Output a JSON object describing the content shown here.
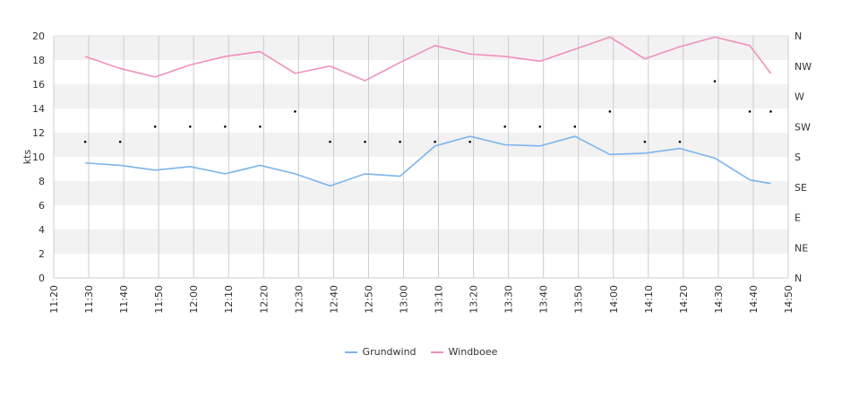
{
  "chart_data": {
    "type": "line",
    "ylabel": "kts",
    "ylim": [
      0,
      20
    ],
    "y_ticks": [
      "0",
      "2",
      "4",
      "6",
      "8",
      "10",
      "12",
      "14",
      "16",
      "18",
      "20"
    ],
    "right_axis_labels": [
      "N",
      "NE",
      "E",
      "SE",
      "S",
      "SW",
      "W",
      "NW",
      "N"
    ],
    "x_ticks": [
      "11:20",
      "11:30",
      "11:40",
      "11:50",
      "12:00",
      "12:10",
      "12:20",
      "12:30",
      "12:40",
      "12:50",
      "13:00",
      "13:10",
      "13:20",
      "13:30",
      "13:40",
      "13:50",
      "14:00",
      "14:10",
      "14:20",
      "14:30",
      "14:40",
      "14:50"
    ],
    "x": [
      "11:29",
      "11:39",
      "11:49",
      "11:59",
      "12:09",
      "12:19",
      "12:29",
      "12:39",
      "12:49",
      "12:59",
      "13:09",
      "13:19",
      "13:29",
      "13:39",
      "13:49",
      "13:59",
      "14:09",
      "14:19",
      "14:29",
      "14:39",
      "14:45"
    ],
    "series": [
      {
        "name": "Grundwind",
        "color": "#7cb5ec",
        "values": [
          9.5,
          9.3,
          8.9,
          9.2,
          8.6,
          9.3,
          8.6,
          7.6,
          8.6,
          8.4,
          10.9,
          11.7,
          11.0,
          10.9,
          11.7,
          10.2,
          10.3,
          10.7,
          9.9,
          8.1,
          7.8
        ]
      },
      {
        "name": "Windboee",
        "color": "#f18fbd",
        "values": [
          18.3,
          17.3,
          16.6,
          17.6,
          18.3,
          18.7,
          16.9,
          17.5,
          16.3,
          17.8,
          19.2,
          18.5,
          18.3,
          17.9,
          18.9,
          19.9,
          18.1,
          19.1,
          19.9,
          19.2,
          16.9
        ]
      }
    ],
    "direction": {
      "x": [
        "11:29",
        "11:39",
        "11:49",
        "11:59",
        "12:09",
        "12:19",
        "12:29",
        "12:39",
        "12:49",
        "12:59",
        "13:09",
        "13:19",
        "13:29",
        "13:39",
        "13:49",
        "13:59",
        "14:09",
        "14:19",
        "14:29",
        "14:39",
        "14:45"
      ],
      "values": [
        11.25,
        11.25,
        12.5,
        12.5,
        12.5,
        12.5,
        13.75,
        11.25,
        11.25,
        11.25,
        11.25,
        11.25,
        12.5,
        12.5,
        12.5,
        13.75,
        11.25,
        11.25,
        16.25,
        13.75,
        13.75
      ]
    },
    "grid": true,
    "legend": "bottom-center"
  },
  "colors": {
    "band": "#f2f2f2",
    "grid": "#cccccc",
    "axis": "#333333"
  }
}
